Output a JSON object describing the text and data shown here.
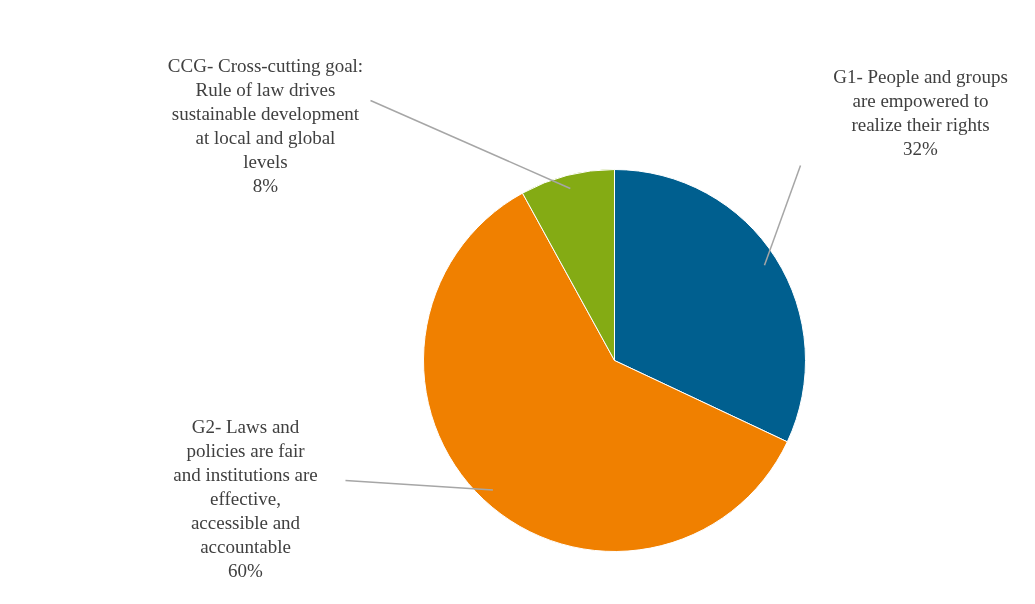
{
  "chart_data": {
    "type": "pie",
    "categories": [
      "G1- People and groups are empowered to realize their rights",
      "G2- Laws and policies are fair and institutions are effective, accessible and accountable",
      "CCG- Cross-cutting goal: Rule of law drives sustainable development at local and global levels"
    ],
    "values": [
      32,
      60,
      8
    ],
    "colors": [
      "#005f8f",
      "#f08000",
      "#84ab14"
    ],
    "value_labels": [
      "32%",
      "60%",
      "8%"
    ]
  }
}
